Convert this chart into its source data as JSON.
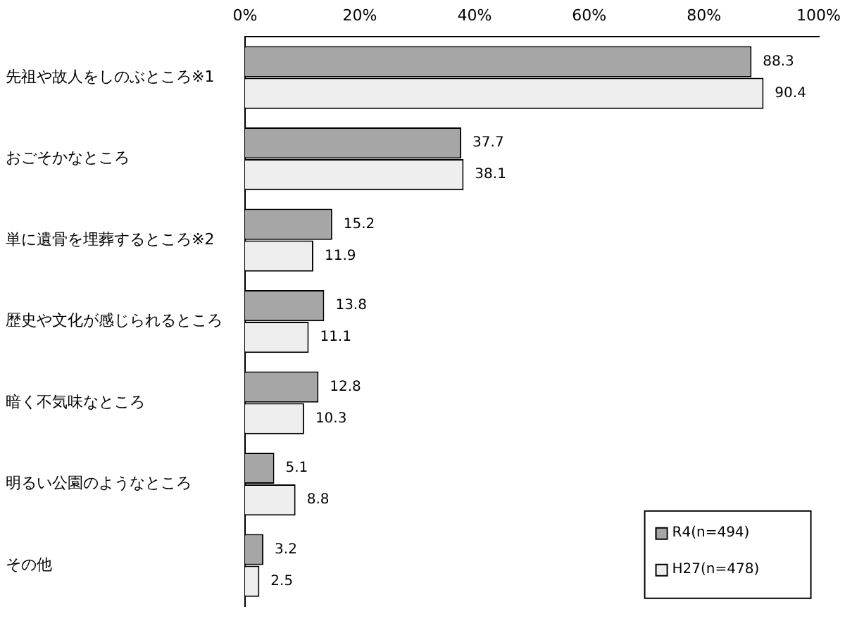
{
  "chart_data": {
    "type": "bar",
    "orientation": "horizontal",
    "categories": [
      "先祖や故人をしのぶところ※1",
      "おごそかなところ",
      "単に遺骨を埋葬するところ※2",
      "歴史や文化が感じられるところ",
      "暗く不気味なところ",
      "明るい公園のようなところ",
      "その他"
    ],
    "series": [
      {
        "name": "R4(n=494)",
        "color": "#a6a6a6",
        "values": [
          88.3,
          37.7,
          15.2,
          13.8,
          12.8,
          5.1,
          3.2
        ]
      },
      {
        "name": "H27(n=478)",
        "color": "#eeeeee",
        "values": [
          90.4,
          38.1,
          11.9,
          11.1,
          10.3,
          8.8,
          2.5
        ]
      }
    ],
    "xlim": [
      0,
      100
    ],
    "xticks": [
      {
        "value": 0,
        "label": "0%"
      },
      {
        "value": 20,
        "label": "20%"
      },
      {
        "value": 40,
        "label": "40%"
      },
      {
        "value": 60,
        "label": "60%"
      },
      {
        "value": 80,
        "label": "80%"
      },
      {
        "value": 100,
        "label": "100%"
      }
    ],
    "data_labels": true,
    "grid": false,
    "legend": "bottom right"
  }
}
